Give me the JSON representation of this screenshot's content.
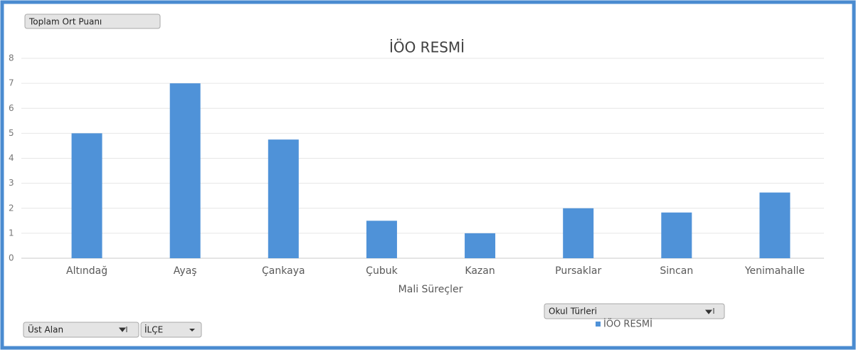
{
  "pivot_buttons": {
    "value_field": "Toplam Ort Puanı",
    "axis_fields": [
      "Üst Alan",
      "İLÇE"
    ],
    "legend_field": "Okul Türleri"
  },
  "chart_data": {
    "type": "bar",
    "title": "İÖO RESMİ",
    "x_label": "Mali Süreçler",
    "categories": [
      "Altındağ",
      "Ayaş",
      "Çankaya",
      "Çubuk",
      "Kazan",
      "Pursaklar",
      "Sincan",
      "Yenimahalle"
    ],
    "series": [
      {
        "name": "İÖO RESMİ",
        "color": "#4f92d8",
        "values": [
          5,
          7,
          4.75,
          1.5,
          1,
          2,
          1.83,
          2.63
        ]
      }
    ],
    "ylim": [
      0,
      8
    ],
    "yticks": [
      0,
      1,
      2,
      3,
      4,
      5,
      6,
      7,
      8
    ],
    "grid": true,
    "legend": "bottom"
  }
}
